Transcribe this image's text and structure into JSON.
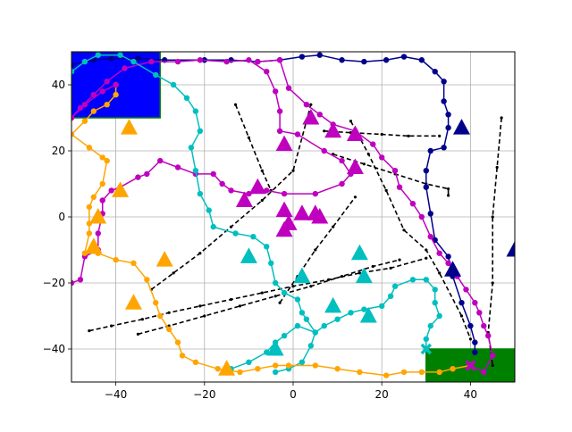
{
  "chart_data": {
    "type": "line",
    "title": "",
    "xlabel": "",
    "ylabel": "",
    "xlim": [
      -50,
      50
    ],
    "ylim": [
      -50,
      50
    ],
    "xticks": [
      -40,
      -20,
      0,
      20,
      40
    ],
    "yticks": [
      -40,
      -20,
      0,
      20,
      40
    ],
    "grid": true,
    "legend": "none",
    "regions": [
      {
        "name": "start-zone",
        "color": "#0000ff",
        "edge": "#008000",
        "x": [
          -50,
          -30
        ],
        "y": [
          30,
          50
        ]
      },
      {
        "name": "goal-zone",
        "color": "#008000",
        "edge": "#008000",
        "x": [
          30,
          50
        ],
        "y": [
          -50,
          -40
        ]
      }
    ],
    "walls": [
      {
        "points": [
          [
            -46,
            -34.5
          ],
          [
            -41,
            -33
          ],
          [
            -34,
            -31
          ],
          [
            -28,
            -29
          ],
          [
            -21,
            -27
          ],
          [
            -14,
            -25
          ],
          [
            -7,
            -23
          ],
          [
            0,
            -21
          ],
          [
            8,
            -19
          ],
          [
            15,
            -17
          ],
          [
            22,
            -15.5
          ],
          [
            30,
            -12.5
          ]
        ]
      },
      {
        "points": [
          [
            -35,
            -35.5
          ],
          [
            -28,
            -33
          ],
          [
            -20,
            -30
          ],
          [
            -12,
            -27
          ],
          [
            -4,
            -24
          ],
          [
            4,
            -21
          ],
          [
            11,
            -18
          ],
          [
            18,
            -15
          ],
          [
            24,
            -13
          ]
        ]
      },
      {
        "points": [
          [
            -32,
            -22
          ],
          [
            -27,
            -17
          ],
          [
            -21,
            -11
          ],
          [
            -14,
            -3
          ],
          [
            -7,
            5
          ],
          [
            0,
            14
          ],
          [
            4,
            34
          ]
        ]
      },
      {
        "points": [
          [
            -3,
            -26
          ],
          [
            1,
            -18
          ],
          [
            5,
            -10
          ],
          [
            9,
            -3
          ],
          [
            14,
            6
          ]
        ]
      },
      {
        "points": [
          [
            -13,
            34
          ],
          [
            -10,
            24
          ],
          [
            -7,
            14
          ],
          [
            -5,
            8
          ]
        ]
      },
      {
        "points": [
          [
            7,
            26
          ],
          [
            13,
            25.5
          ],
          [
            20,
            25
          ],
          [
            26,
            24.5
          ],
          [
            33,
            24.5
          ]
        ]
      },
      {
        "points": [
          [
            9,
            19
          ],
          [
            16,
            16
          ],
          [
            23,
            13
          ],
          [
            30,
            10
          ],
          [
            35,
            8.5
          ],
          [
            35,
            6.5
          ]
        ]
      },
      {
        "points": [
          [
            13,
            29
          ],
          [
            17,
            19
          ],
          [
            21,
            8
          ],
          [
            25,
            -4
          ],
          [
            30,
            -10
          ],
          [
            33,
            -17
          ],
          [
            38,
            -30
          ],
          [
            40,
            -37
          ]
        ]
      },
      {
        "points": [
          [
            47,
            30
          ],
          [
            46,
            15
          ],
          [
            45,
            0
          ],
          [
            45,
            -20
          ],
          [
            44,
            -35
          ],
          [
            45,
            -45
          ]
        ]
      }
    ],
    "series": [
      {
        "color": "#00008b",
        "points": [
          [
            -50,
            46
          ],
          [
            -45,
            47.5
          ],
          [
            -41,
            48
          ],
          [
            -35,
            48
          ],
          [
            -29,
            47.5
          ],
          [
            -20,
            47.5
          ],
          [
            -14,
            47.5
          ],
          [
            -8,
            47
          ],
          [
            -3,
            47.5
          ],
          [
            2,
            48.5
          ],
          [
            6,
            49
          ],
          [
            11,
            47.5
          ],
          [
            16,
            47
          ],
          [
            21,
            47.5
          ],
          [
            25,
            48.5
          ],
          [
            29,
            47.5
          ],
          [
            32,
            44
          ],
          [
            34,
            41
          ],
          [
            34,
            35
          ],
          [
            35,
            31
          ],
          [
            35,
            27
          ],
          [
            34,
            21
          ],
          [
            31,
            20
          ],
          [
            30,
            14
          ],
          [
            30,
            9
          ],
          [
            31,
            1
          ],
          [
            32,
            -7
          ],
          [
            35,
            -12
          ],
          [
            36,
            -18
          ],
          [
            38,
            -26
          ],
          [
            40,
            -33
          ],
          [
            41,
            -38
          ],
          [
            41,
            -41
          ]
        ]
      },
      {
        "color": "#bf00bf",
        "points": [
          [
            -50,
            30
          ],
          [
            -48,
            33
          ],
          [
            -45,
            37
          ],
          [
            -42,
            41
          ],
          [
            -38,
            45
          ],
          [
            -32,
            47
          ],
          [
            -26,
            47
          ],
          [
            -21,
            47.5
          ],
          [
            -15,
            47
          ],
          [
            -10,
            47.5
          ],
          [
            -6,
            44
          ],
          [
            -4,
            38
          ],
          [
            -3,
            32
          ],
          [
            -3,
            26
          ],
          [
            1,
            25
          ],
          [
            7,
            20
          ],
          [
            11,
            17
          ],
          [
            13,
            13
          ],
          [
            11,
            10
          ],
          [
            5,
            7
          ],
          [
            -2,
            7
          ],
          [
            -6,
            8
          ],
          [
            -10,
            7
          ],
          [
            -14,
            8
          ],
          [
            -16,
            10
          ],
          [
            -18,
            13
          ],
          [
            -22,
            13
          ],
          [
            -26,
            15
          ],
          [
            -30,
            17
          ],
          [
            -33,
            13
          ],
          [
            -35,
            12
          ],
          [
            -39,
            9
          ],
          [
            -41,
            8
          ],
          [
            -43,
            5
          ],
          [
            -43,
            1
          ],
          [
            -44,
            -5
          ],
          [
            -44,
            -10
          ],
          [
            -47,
            -12
          ],
          [
            -48,
            -19
          ],
          [
            -50,
            -20
          ]
        ]
      },
      {
        "color": "#00bfbf",
        "points": [
          [
            -50,
            44
          ],
          [
            -47,
            47
          ],
          [
            -44,
            49
          ],
          [
            -39,
            49
          ],
          [
            -36,
            47
          ],
          [
            -31,
            43
          ],
          [
            -27,
            40
          ],
          [
            -24,
            36
          ],
          [
            -22,
            32
          ],
          [
            -21,
            26
          ],
          [
            -23,
            21
          ],
          [
            -22,
            14
          ],
          [
            -21,
            7
          ],
          [
            -19,
            2
          ],
          [
            -18,
            -3
          ],
          [
            -13,
            -5
          ],
          [
            -9,
            -6
          ],
          [
            -6,
            -9
          ],
          [
            -5,
            -14
          ],
          [
            -4,
            -20
          ],
          [
            -2,
            -23
          ],
          [
            1,
            -25
          ],
          [
            2,
            -29
          ],
          [
            3,
            -31
          ],
          [
            5,
            -35
          ],
          [
            4,
            -39
          ],
          [
            2,
            -44
          ],
          [
            -1,
            -46
          ],
          [
            -4,
            -47
          ]
        ]
      },
      {
        "color": "#00bfbf",
        "points": [
          [
            -14,
            -46
          ],
          [
            -10,
            -44
          ],
          [
            -6,
            -41
          ],
          [
            -4,
            -38
          ],
          [
            -2,
            -36
          ],
          [
            1,
            -33
          ],
          [
            5,
            -35
          ],
          [
            7,
            -33
          ],
          [
            10,
            -31
          ],
          [
            13,
            -29
          ],
          [
            16,
            -28
          ],
          [
            20,
            -27
          ],
          [
            22,
            -24
          ],
          [
            23,
            -21
          ],
          [
            27,
            -19
          ],
          [
            30,
            -19
          ],
          [
            32,
            -22
          ],
          [
            32,
            -26
          ],
          [
            33,
            -30
          ],
          [
            31,
            -33
          ],
          [
            30,
            -37
          ],
          [
            30,
            -40
          ]
        ]
      },
      {
        "color": "#ffa500",
        "points": [
          [
            -40,
            40
          ],
          [
            -40,
            37
          ],
          [
            -42,
            34
          ],
          [
            -45,
            32
          ],
          [
            -47,
            29
          ],
          [
            -50,
            25
          ],
          [
            -46,
            21
          ],
          [
            -43,
            18
          ],
          [
            -42,
            17
          ],
          [
            -43,
            10
          ],
          [
            -45,
            6
          ],
          [
            -46,
            3
          ],
          [
            -46,
            -2
          ],
          [
            -46,
            -5
          ],
          [
            -47,
            -11
          ],
          [
            -44,
            -11
          ],
          [
            -40,
            -13
          ],
          [
            -36,
            -14
          ],
          [
            -33,
            -19
          ],
          [
            -31,
            -26
          ],
          [
            -30,
            -30
          ],
          [
            -28,
            -34
          ],
          [
            -26,
            -38
          ],
          [
            -25,
            -42
          ],
          [
            -22,
            -44
          ],
          [
            -17,
            -46
          ],
          [
            -12,
            -47
          ],
          [
            -8,
            -46
          ],
          [
            -4,
            -45
          ],
          [
            -1,
            -45
          ],
          [
            5,
            -45
          ],
          [
            10,
            -46
          ],
          [
            15,
            -47
          ],
          [
            21,
            -48
          ],
          [
            25,
            -47
          ],
          [
            29,
            -47
          ],
          [
            33,
            -47
          ],
          [
            36,
            -46
          ],
          [
            40,
            -45
          ]
        ]
      },
      {
        "color": "#bf00bf",
        "points": [
          [
            -50,
            30
          ],
          [
            -47,
            34
          ],
          [
            -43,
            38
          ],
          [
            -40,
            40
          ]
        ]
      },
      {
        "color": "#bf00bf",
        "points": [
          [
            -8,
            47
          ],
          [
            -3,
            47.5
          ],
          [
            -1,
            39
          ],
          [
            3,
            34
          ],
          [
            6,
            31
          ],
          [
            9,
            28
          ],
          [
            14,
            26
          ],
          [
            18,
            22
          ],
          [
            20,
            18
          ],
          [
            23,
            14
          ],
          [
            24,
            9
          ],
          [
            27,
            4
          ],
          [
            29,
            0
          ],
          [
            31,
            -6
          ],
          [
            33,
            -11
          ],
          [
            35,
            -14
          ],
          [
            37,
            -18
          ],
          [
            39,
            -22
          ],
          [
            41,
            -26
          ],
          [
            42,
            -29
          ],
          [
            43,
            -33
          ],
          [
            44,
            -36
          ],
          [
            45,
            -42
          ],
          [
            43,
            -47
          ],
          [
            40,
            -45
          ]
        ]
      }
    ],
    "markers": [
      {
        "shape": "triangle",
        "color": "#ffa500",
        "points": [
          [
            -37,
            27
          ],
          [
            -39,
            8
          ],
          [
            -44,
            0
          ],
          [
            -45,
            -9
          ],
          [
            -29,
            -13
          ],
          [
            -36,
            -26
          ],
          [
            -15,
            -46
          ]
        ]
      },
      {
        "shape": "triangle",
        "color": "#00bfbf",
        "points": [
          [
            -10,
            -12
          ],
          [
            2,
            -18
          ],
          [
            9,
            -27
          ],
          [
            15,
            -11
          ],
          [
            16,
            -18
          ],
          [
            17,
            -30
          ],
          [
            -4,
            -40
          ]
        ]
      },
      {
        "shape": "triangle",
        "color": "#bf00bf",
        "points": [
          [
            4,
            30
          ],
          [
            9,
            26
          ],
          [
            14,
            25
          ],
          [
            -2,
            22
          ],
          [
            -11,
            5
          ],
          [
            -8,
            9
          ],
          [
            -2,
            2
          ],
          [
            -2,
            -4
          ],
          [
            2,
            1
          ],
          [
            5,
            1
          ],
          [
            6,
            0
          ],
          [
            14,
            15
          ],
          [
            -1,
            -2
          ]
        ]
      },
      {
        "shape": "triangle",
        "color": "#00008b",
        "points": [
          [
            38,
            27
          ],
          [
            50,
            -10
          ],
          [
            36,
            -16
          ]
        ]
      },
      {
        "shape": "x",
        "color": "#00bfbf",
        "points": [
          [
            30,
            -40
          ]
        ]
      },
      {
        "shape": "x",
        "color": "#bf00bf",
        "points": [
          [
            40,
            -45
          ]
        ]
      }
    ]
  }
}
